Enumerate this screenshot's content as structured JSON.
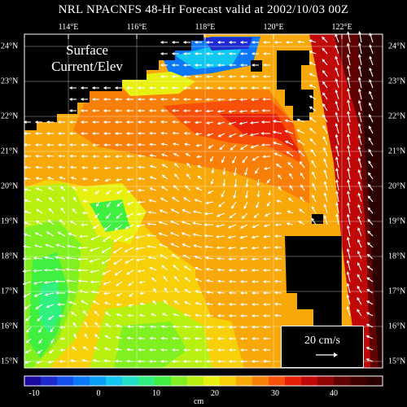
{
  "title": "NRL NPACNFS 48-Hr Forecast valid at 2002/10/03 00Z",
  "panel_label_line1": "Surface",
  "panel_label_line2": "Current/Elev",
  "legend": {
    "vector_label": "20 cm/s"
  },
  "colorbar": {
    "unit": "cm",
    "tick_labels": [
      "-10",
      "0",
      "10",
      "20",
      "30",
      "40"
    ],
    "colors": [
      "#1a0aa0",
      "#1e2ad0",
      "#1450f0",
      "#0a78f8",
      "#08a0f8",
      "#10c8f0",
      "#20e0c8",
      "#30f080",
      "#40f040",
      "#80f020",
      "#b8f010",
      "#e8f010",
      "#f8d008",
      "#f8a808",
      "#f88008",
      "#f85008",
      "#e82008",
      "#c00808",
      "#900404",
      "#600202",
      "#400000",
      "#2a0000"
    ]
  },
  "axes": {
    "lon_labels": [
      "114°E",
      "116°E",
      "118°E",
      "120°E",
      "122°E"
    ],
    "lat_labels": [
      "24°N",
      "23°N",
      "22°N",
      "21°N",
      "20°N",
      "19°N",
      "18°N",
      "17°N",
      "16°N",
      "15°N"
    ]
  },
  "colors": {
    "land": "#000000",
    "grid": "#ffffff",
    "vectors": "#ffffff"
  }
}
